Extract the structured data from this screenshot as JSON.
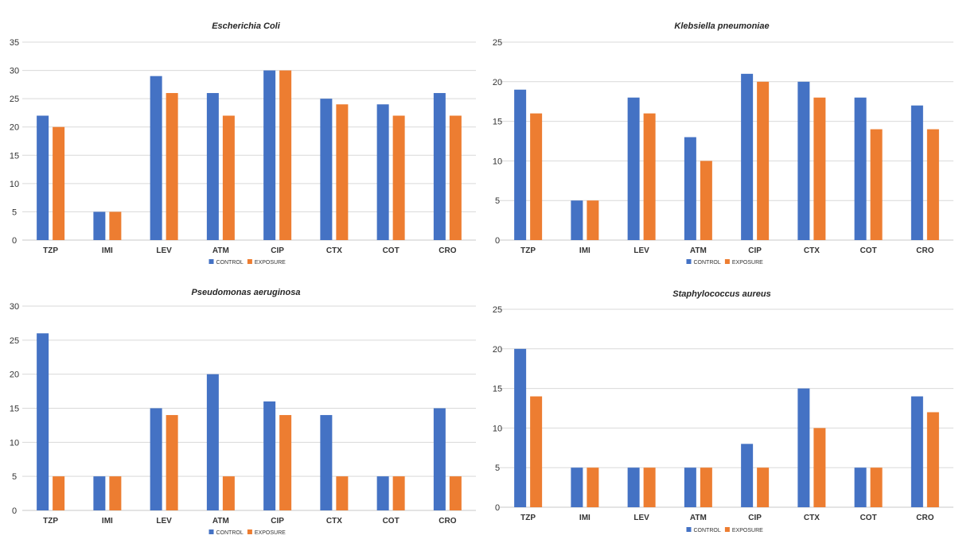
{
  "chart_data": [
    {
      "type": "bar",
      "title": "Escherichia Coli",
      "categories": [
        "TZP",
        "IMI",
        "LEV",
        "ATM",
        "CIP",
        "CTX",
        "COT",
        "CRO"
      ],
      "series": [
        {
          "name": "CONTROL",
          "values": [
            22,
            5,
            29,
            26,
            30,
            25,
            24,
            26
          ]
        },
        {
          "name": "EXPOSURE",
          "values": [
            20,
            5,
            26,
            22,
            30,
            24,
            22,
            22
          ]
        }
      ],
      "ylim": [
        0,
        35
      ],
      "yticks": [
        0,
        5,
        10,
        15,
        20,
        25,
        30,
        35
      ],
      "grid": true,
      "legend": "bottom"
    },
    {
      "type": "bar",
      "title": "Klebsiella pneumoniae",
      "categories": [
        "TZP",
        "IMI",
        "LEV",
        "ATM",
        "CIP",
        "CTX",
        "COT",
        "CRO"
      ],
      "series": [
        {
          "name": "CONTROL",
          "values": [
            19,
            5,
            18,
            13,
            21,
            20,
            18,
            17
          ]
        },
        {
          "name": "EXPOSURE",
          "values": [
            16,
            5,
            16,
            10,
            20,
            18,
            14,
            14
          ]
        }
      ],
      "ylim": [
        0,
        25
      ],
      "yticks": [
        0,
        5,
        10,
        15,
        20,
        25
      ],
      "grid": true,
      "legend": "bottom"
    },
    {
      "type": "bar",
      "title": "Pseudomonas aeruginosa",
      "categories": [
        "TZP",
        "IMI",
        "LEV",
        "ATM",
        "CIP",
        "CTX",
        "COT",
        "CRO"
      ],
      "series": [
        {
          "name": "CONTROL",
          "values": [
            26,
            5,
            15,
            20,
            16,
            14,
            5,
            15
          ]
        },
        {
          "name": "EXPOSURE",
          "values": [
            5,
            5,
            14,
            5,
            14,
            5,
            5,
            5
          ]
        }
      ],
      "ylim": [
        0,
        30
      ],
      "yticks": [
        0,
        5,
        10,
        15,
        20,
        25,
        30
      ],
      "grid": true,
      "legend": "bottom"
    },
    {
      "type": "bar",
      "title": "Staphylococcus aureus",
      "categories": [
        "TZP",
        "IMI",
        "LEV",
        "ATM",
        "CIP",
        "CTX",
        "COT",
        "CRO"
      ],
      "series": [
        {
          "name": "CONTROL",
          "values": [
            20,
            5,
            5,
            5,
            8,
            15,
            5,
            14
          ]
        },
        {
          "name": "EXPOSURE",
          "values": [
            14,
            5,
            5,
            5,
            5,
            10,
            5,
            12
          ]
        }
      ],
      "ylim": [
        0,
        25
      ],
      "yticks": [
        0,
        5,
        10,
        15,
        20,
        25
      ],
      "grid": true,
      "legend": "bottom"
    }
  ],
  "colors": {
    "CONTROL": "#4472c4",
    "EXPOSURE": "#ed7d31"
  }
}
